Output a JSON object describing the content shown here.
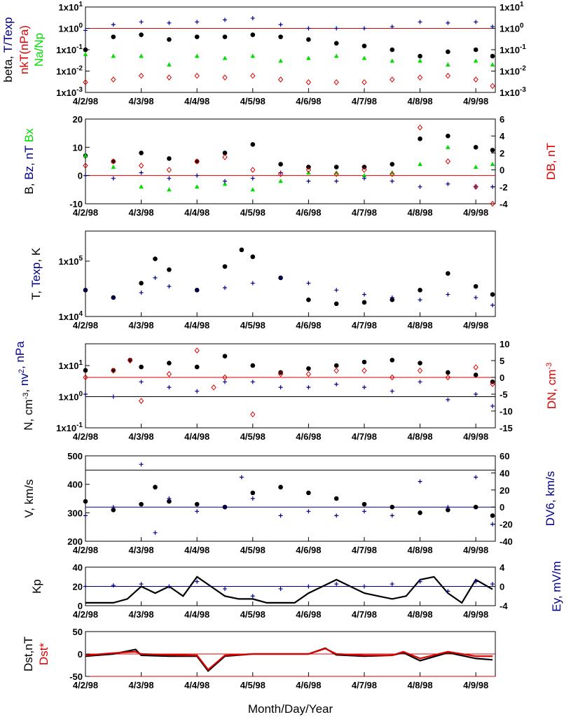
{
  "colors": {
    "black": "#000000",
    "red": "#dd0000",
    "blue": "#00008b",
    "green": "#00dd00"
  },
  "chart_data": [
    {
      "id": "ratios",
      "type": "scatter",
      "y_scale": "log",
      "ylim": [
        0.001,
        10
      ],
      "y_ticks": [
        "1x10-3",
        "1x10-2",
        "1x10-1",
        "1x100",
        "1x101"
      ],
      "right_y_ticks": [
        "1x10-3",
        "1x10-2",
        "1x10-1",
        "1x100",
        "1x101"
      ],
      "ylabel_parts": [
        {
          "text": "beta, ",
          "color": "#000000"
        },
        {
          "text": "T/Texp",
          "color": "#00008b"
        }
      ],
      "ylabel2_parts": [
        {
          "text": "nkT(nPa)",
          "color": "#dd0000"
        }
      ],
      "ylabel3_parts": [
        {
          "text": "Na/Np",
          "color": "#00dd00"
        }
      ],
      "ref_lines": [
        1
      ],
      "x_ticks": [
        "4/2/98",
        "4/3/98",
        "4/4/98",
        "4/5/98",
        "4/6/98",
        "4/7/98",
        "4/8/98",
        "4/9/98"
      ],
      "series": [
        {
          "marker": "cross",
          "color": "#00008b",
          "x": [
            0,
            0.5,
            1,
            1.5,
            2,
            2.5,
            3,
            3.5,
            4,
            4.5,
            5,
            5.5,
            6,
            6.5,
            7,
            7.3
          ],
          "y": [
            0.8,
            1.5,
            2,
            1.8,
            2,
            2.5,
            3,
            1.5,
            1,
            1,
            1,
            1.2,
            2,
            1.8,
            2,
            1.2
          ]
        },
        {
          "marker": "dot",
          "color": "#000000",
          "x": [
            0,
            0.5,
            1,
            1.5,
            2,
            2.5,
            3,
            3.5,
            4,
            4.5,
            5,
            5.5,
            6,
            6.5,
            7,
            7.3
          ],
          "y": [
            0.1,
            0.4,
            0.5,
            0.3,
            0.4,
            0.4,
            0.5,
            0.4,
            0.3,
            0.2,
            0.15,
            0.1,
            0.05,
            0.08,
            0.1,
            0.05
          ]
        },
        {
          "marker": "triangle",
          "color": "#00dd00",
          "x": [
            0,
            0.5,
            1,
            1.5,
            2,
            2.5,
            3,
            3.5,
            4,
            4.5,
            5,
            5.5,
            6,
            6.5,
            7,
            7.3
          ],
          "y": [
            0.06,
            0.05,
            0.05,
            0.02,
            0.05,
            0.04,
            0.05,
            0.03,
            0.04,
            0.05,
            0.04,
            0.03,
            0.03,
            0.02,
            0.03,
            0.02
          ]
        },
        {
          "marker": "diamond",
          "color": "#dd0000",
          "x": [
            0,
            0.5,
            1,
            1.5,
            2,
            2.5,
            3,
            3.5,
            4,
            4.5,
            5,
            5.5,
            6,
            6.5,
            7,
            7.3
          ],
          "y": [
            0.003,
            0.004,
            0.006,
            0.005,
            0.006,
            0.005,
            0.006,
            0.004,
            0.003,
            0.003,
            0.003,
            0.004,
            0.005,
            0.006,
            0.004,
            0.002
          ]
        }
      ]
    },
    {
      "id": "magfield",
      "type": "scatter",
      "ylim": [
        -10,
        20
      ],
      "y_ticks": [
        "-10",
        "0",
        "10",
        "20"
      ],
      "right_ylim": [
        -4,
        6
      ],
      "right_y_ticks": [
        "-4",
        "-2",
        "0",
        "2",
        "4",
        "6"
      ],
      "ylabel_parts": [
        {
          "text": "B, ",
          "color": "#000000"
        },
        {
          "text": "Bz, nT",
          "color": "#00008b"
        },
        {
          "text": " Bx",
          "color": "#00dd00"
        }
      ],
      "ylabel2_parts": [
        {
          "text": "DB, nT",
          "color": "#dd0000"
        }
      ],
      "ref_lines": [
        0
      ],
      "x_ticks": [
        "4/2/98",
        "4/3/98",
        "4/4/98",
        "4/5/98",
        "4/6/98",
        "4/7/98",
        "4/8/98",
        "4/9/98"
      ],
      "series": [
        {
          "marker": "dot",
          "color": "#000000",
          "x": [
            0,
            0.5,
            1,
            1.5,
            2,
            2.5,
            3,
            3.5,
            4,
            4.5,
            5,
            5.5,
            6,
            6.5,
            7,
            7.3
          ],
          "y": [
            7,
            5,
            8,
            6,
            5,
            8,
            11,
            4,
            3,
            3,
            3,
            4,
            13,
            14,
            10,
            9
          ]
        },
        {
          "marker": "triangle",
          "color": "#00dd00",
          "x": [
            0,
            0.5,
            1,
            1.5,
            2,
            2.5,
            3,
            3.5,
            4,
            4.5,
            5,
            5.5,
            6,
            6.5,
            7,
            7.3
          ],
          "y": [
            7,
            3,
            -4,
            -5,
            -4,
            -3,
            -5,
            -2,
            1,
            1,
            0,
            1,
            4,
            10,
            3,
            4
          ]
        },
        {
          "marker": "cross",
          "color": "#00008b",
          "x": [
            0,
            0.5,
            1,
            1.5,
            2,
            2.5,
            3,
            3.5,
            4,
            4.5,
            5,
            5.5,
            6,
            6.5,
            7,
            7.3
          ],
          "y": [
            0,
            -1,
            1,
            -1,
            0,
            -2,
            -1,
            1,
            -2,
            -2,
            -1,
            -2,
            -4,
            -3,
            -4,
            -4
          ]
        },
        {
          "marker": "diamond",
          "color": "#dd0000",
          "axis": "right",
          "x": [
            0,
            0.5,
            1,
            1.5,
            2,
            2.5,
            3,
            3.5,
            4,
            4.5,
            5,
            5.5,
            6,
            6.5,
            7,
            7.3
          ],
          "y": [
            0.5,
            1,
            0.5,
            0,
            1,
            1.5,
            0,
            -0.5,
            0,
            -0.5,
            0,
            -0.5,
            5,
            1,
            -2,
            -4
          ]
        }
      ]
    },
    {
      "id": "temperature",
      "type": "scatter",
      "y_scale": "log",
      "ylim": [
        10000,
        350000
      ],
      "y_ticks": [
        "1x104",
        "1x105"
      ],
      "ylabel_parts": [
        {
          "text": "T, ",
          "color": "#000000"
        },
        {
          "text": "Texp",
          "color": "#00008b"
        },
        {
          "text": ", K",
          "color": "#000000"
        }
      ],
      "x_ticks": [
        "4/2/98",
        "4/3/98",
        "4/4/98",
        "4/5/98",
        "4/6/98",
        "4/7/98",
        "4/8/98",
        "4/9/98"
      ],
      "series": [
        {
          "marker": "dot",
          "color": "#000000",
          "x": [
            0,
            0.5,
            1,
            1.25,
            1.5,
            2,
            2.5,
            2.8,
            3,
            3.5,
            4,
            4.5,
            5,
            5.5,
            6,
            6.5,
            7,
            7.3
          ],
          "y": [
            30000,
            22000,
            40000,
            110000,
            70000,
            30000,
            80000,
            160000,
            120000,
            50000,
            20000,
            17000,
            18000,
            20000,
            30000,
            60000,
            35000,
            25000
          ]
        },
        {
          "marker": "cross",
          "color": "#00008b",
          "x": [
            0,
            0.5,
            1,
            1.25,
            1.5,
            2,
            2.5,
            3,
            3.5,
            4,
            4.5,
            5,
            5.5,
            6,
            6.5,
            7,
            7.3
          ],
          "y": [
            30000,
            22000,
            27000,
            50000,
            35000,
            30000,
            33000,
            40000,
            50000,
            40000,
            30000,
            25000,
            22000,
            20000,
            25000,
            22000,
            16000
          ]
        }
      ]
    },
    {
      "id": "density",
      "type": "scatter",
      "y_scale": "log",
      "ylim": [
        0.1,
        50
      ],
      "y_ticks": [
        "1x10-1",
        "1x100",
        "1x101"
      ],
      "right_ylim": [
        -15,
        10
      ],
      "right_y_ticks": [
        "-15",
        "-10",
        "-5",
        "0",
        "5",
        "10"
      ],
      "ylabel_parts": [
        {
          "text": "N, cm-3, ",
          "color": "#000000"
        },
        {
          "text": "nv2, nPa",
          "color": "#00008b"
        }
      ],
      "ylabel2_parts": [
        {
          "text": "DN, cm-3",
          "color": "#dd0000"
        }
      ],
      "ref_lines": [
        1
      ],
      "x_ticks": [
        "4/2/98",
        "4/3/98",
        "4/4/98",
        "4/5/98",
        "4/6/98",
        "4/7/98",
        "4/8/98",
        "4/9/98"
      ],
      "series": [
        {
          "marker": "dot",
          "color": "#000000",
          "x": [
            0,
            0.5,
            0.8,
            1,
            1.5,
            2,
            2.5,
            3,
            3.5,
            4,
            4.5,
            5,
            5.5,
            6,
            6.5,
            7,
            7.3
          ],
          "y": [
            7,
            7,
            15,
            9,
            12,
            9,
            20,
            10,
            6,
            8,
            10,
            13,
            15,
            12,
            6,
            5,
            3
          ]
        },
        {
          "marker": "cross",
          "color": "#00008b",
          "x": [
            0,
            0.5,
            1,
            1.5,
            2,
            2.5,
            3,
            3.5,
            4,
            4.5,
            5,
            5.5,
            6,
            6.5,
            7,
            7.3
          ],
          "y": [
            1.2,
            1,
            3,
            2,
            1.5,
            3,
            3,
            2,
            2,
            2.5,
            2,
            1.5,
            3,
            0.8,
            1.2,
            0.5
          ]
        },
        {
          "marker": "diamond",
          "color": "#dd0000",
          "axis": "right",
          "x": [
            0,
            0.5,
            0.8,
            1,
            1.5,
            2,
            2.3,
            2.5,
            3,
            3.5,
            4,
            4.5,
            5,
            5.5,
            6,
            6.5,
            7,
            7.3
          ],
          "y": [
            0,
            2,
            5,
            -7,
            1,
            8,
            -3,
            0,
            -11,
            1,
            1,
            2,
            2,
            0,
            2,
            0,
            3,
            -2
          ]
        }
      ]
    },
    {
      "id": "velocity",
      "type": "scatter",
      "ylim": [
        200,
        500
      ],
      "y_ticks": [
        "200",
        "300",
        "400",
        "500"
      ],
      "right_ylim": [
        -40,
        60
      ],
      "right_y_ticks": [
        "-40",
        "-20",
        "0",
        "20",
        "40",
        "60"
      ],
      "ylabel_parts": [
        {
          "text": "V, km/s",
          "color": "#000000"
        }
      ],
      "ylabel2_parts": [
        {
          "text": "DV6, km/s",
          "color": "#00008b"
        }
      ],
      "ref_lines": [
        450
      ],
      "right_ref_lines": [
        0
      ],
      "x_ticks": [
        "4/2/98",
        "4/3/98",
        "4/4/98",
        "4/5/98",
        "4/6/98",
        "4/7/98",
        "4/8/98",
        "4/9/98"
      ],
      "series": [
        {
          "marker": "dot",
          "color": "#000000",
          "x": [
            0,
            0.5,
            1,
            1.25,
            1.5,
            2,
            2.5,
            3,
            3.5,
            4,
            4.5,
            5,
            5.5,
            6,
            6.5,
            7,
            7.3
          ],
          "y": [
            340,
            310,
            330,
            390,
            340,
            330,
            320,
            370,
            390,
            370,
            350,
            330,
            320,
            300,
            310,
            320,
            290
          ]
        },
        {
          "marker": "cross",
          "color": "#00008b",
          "axis": "right",
          "x": [
            0,
            0.5,
            1,
            1.25,
            1.5,
            2,
            2.5,
            2.8,
            3,
            3.5,
            4,
            4.5,
            5,
            5.5,
            6,
            6.5,
            7,
            7.3
          ],
          "y": [
            -10,
            0,
            50,
            -30,
            10,
            -5,
            0,
            35,
            10,
            -10,
            -5,
            -10,
            -5,
            -10,
            30,
            0,
            35,
            -20
          ]
        }
      ]
    },
    {
      "id": "kp_ey",
      "type": "line",
      "ylim": [
        0,
        40
      ],
      "y_ticks": [
        "0",
        "20",
        "40"
      ],
      "right_ylim": [
        -4,
        4
      ],
      "right_y_ticks": [
        "-4",
        "0",
        "4"
      ],
      "ylabel_parts": [
        {
          "text": "Kp",
          "color": "#000000"
        }
      ],
      "ylabel2_parts": [
        {
          "text": "Ey,  mV/m",
          "color": "#00008b"
        }
      ],
      "right_ref_lines": [
        0
      ],
      "x_ticks": [
        "4/2/98",
        "4/3/98",
        "4/4/98",
        "4/5/98",
        "4/6/98",
        "4/7/98",
        "4/8/98",
        "4/9/98"
      ],
      "series": [
        {
          "name": "Kp",
          "type": "line",
          "color": "#000000",
          "x": [
            0,
            0.25,
            0.5,
            0.75,
            1,
            1.25,
            1.5,
            1.75,
            2,
            2.25,
            2.5,
            2.75,
            3,
            3.25,
            3.5,
            3.75,
            4,
            4.25,
            4.5,
            4.75,
            5,
            5.25,
            5.5,
            5.75,
            6,
            6.25,
            6.5,
            6.75,
            7,
            7.3
          ],
          "y": [
            3,
            3,
            3,
            7,
            20,
            13,
            20,
            10,
            30,
            20,
            10,
            7,
            7,
            3,
            3,
            3,
            13,
            20,
            27,
            20,
            13,
            10,
            7,
            10,
            27,
            30,
            13,
            3,
            27,
            17
          ]
        },
        {
          "name": "Ey",
          "marker": "cross",
          "color": "#00008b",
          "axis": "right",
          "x": [
            0,
            0.5,
            1,
            1.5,
            2,
            2.5,
            3,
            3.5,
            4,
            4.5,
            5,
            5.5,
            6,
            6.5,
            7,
            7.3
          ],
          "y": [
            0,
            0.2,
            0.5,
            0,
            1,
            -0.5,
            -2,
            -0.5,
            0,
            0.5,
            0,
            0.5,
            1,
            -1,
            1,
            0.5
          ]
        }
      ]
    },
    {
      "id": "dst",
      "type": "line",
      "ylim": [
        -50,
        50
      ],
      "y_ticks": [
        "-50",
        "0",
        "50"
      ],
      "ylabel_parts": [
        {
          "text": "Dst,nT",
          "color": "#000000"
        }
      ],
      "ylabel2_parts": [
        {
          "text": "Dst*",
          "color": "#dd0000"
        }
      ],
      "ref_lines": [
        0,
        -50
      ],
      "x_ticks": [
        "4/2/98",
        "4/3/98",
        "4/4/98",
        "4/5/98",
        "4/6/98",
        "4/7/98",
        "4/8/98",
        "4/9/98"
      ],
      "xlabel": "Month/Day/Year",
      "series": [
        {
          "name": "Dst,nT",
          "type": "line",
          "color": "#000000",
          "x": [
            0,
            0.5,
            0.9,
            1,
            1.5,
            2,
            2.2,
            2.5,
            3,
            3.5,
            4,
            4.3,
            4.5,
            5,
            5.5,
            5.7,
            6,
            6.5,
            7,
            7.3
          ],
          "y": [
            -5,
            0,
            10,
            -3,
            -5,
            -5,
            -38,
            -5,
            0,
            0,
            0,
            13,
            -2,
            -5,
            -3,
            3,
            -15,
            3,
            -10,
            -13
          ]
        },
        {
          "name": "Dst*",
          "type": "line",
          "color": "#dd0000",
          "x": [
            0,
            0.5,
            0.9,
            1,
            1.5,
            2,
            2.2,
            2.5,
            3,
            3.5,
            4,
            4.3,
            4.5,
            5,
            5.5,
            5.7,
            6,
            6.5,
            7,
            7.3
          ],
          "y": [
            -3,
            2,
            5,
            0,
            -2,
            -3,
            -35,
            -3,
            0,
            0,
            0,
            12,
            0,
            -3,
            -3,
            5,
            -10,
            5,
            -5,
            -5
          ]
        }
      ]
    }
  ]
}
